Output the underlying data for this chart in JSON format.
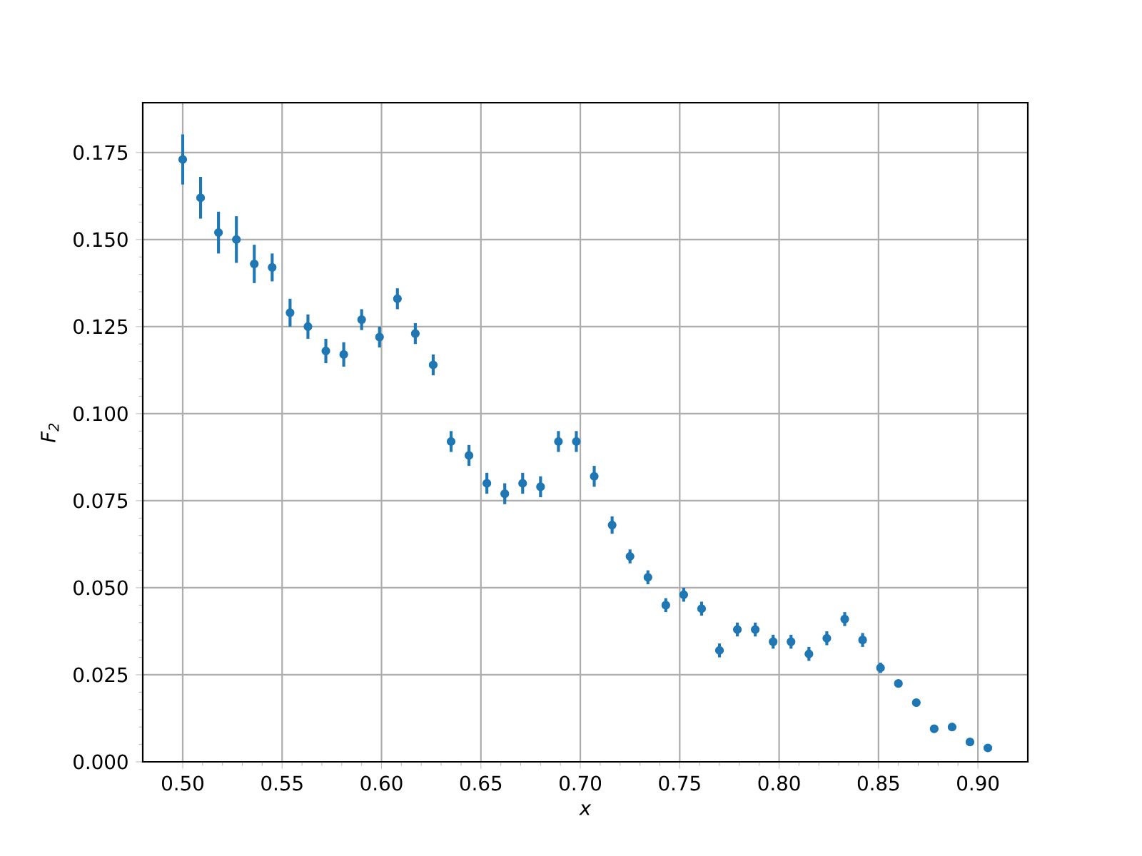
{
  "chart_data": {
    "type": "scatter",
    "xlabel": "x",
    "ylabel": "F$_{2}$",
    "x": [
      0.5,
      0.509,
      0.518,
      0.527,
      0.536,
      0.545,
      0.554,
      0.563,
      0.572,
      0.581,
      0.59,
      0.599,
      0.608,
      0.617,
      0.626,
      0.635,
      0.644,
      0.653,
      0.662,
      0.671,
      0.68,
      0.689,
      0.698,
      0.707,
      0.716,
      0.725,
      0.734,
      0.743,
      0.752,
      0.761,
      0.77,
      0.779,
      0.788,
      0.797,
      0.806,
      0.815,
      0.824,
      0.833,
      0.842,
      0.851,
      0.86,
      0.869,
      0.878,
      0.887,
      0.896,
      0.905
    ],
    "values": [
      0.173,
      0.162,
      0.152,
      0.15,
      0.143,
      0.142,
      0.129,
      0.125,
      0.118,
      0.117,
      0.127,
      0.122,
      0.133,
      0.123,
      0.114,
      0.092,
      0.088,
      0.08,
      0.077,
      0.08,
      0.079,
      0.092,
      0.092,
      0.082,
      0.068,
      0.059,
      0.053,
      0.045,
      0.048,
      0.044,
      0.032,
      0.038,
      0.038,
      0.0345,
      0.0345,
      0.031,
      0.0355,
      0.041,
      0.035,
      0.027,
      0.0225,
      0.017,
      0.0095,
      0.01,
      0.0057,
      0.004
    ],
    "errors": [
      0.0072,
      0.006,
      0.006,
      0.0067,
      0.0055,
      0.004,
      0.004,
      0.0035,
      0.0035,
      0.0035,
      0.003,
      0.003,
      0.003,
      0.003,
      0.003,
      0.003,
      0.003,
      0.003,
      0.003,
      0.003,
      0.003,
      0.003,
      0.003,
      0.003,
      0.0025,
      0.002,
      0.002,
      0.002,
      0.002,
      0.002,
      0.002,
      0.002,
      0.002,
      0.002,
      0.002,
      0.002,
      0.002,
      0.002,
      0.002,
      0.0015,
      0.001,
      0.001,
      null,
      null,
      null,
      null
    ],
    "color": "#1f77b4",
    "marker": "circle",
    "grid": true,
    "xlim": [
      0.4799,
      0.9251
    ],
    "ylim": [
      0,
      0.1893
    ],
    "xticks": [
      {
        "value": 0.5,
        "label": "0.50"
      },
      {
        "value": 0.55,
        "label": "0.55"
      },
      {
        "value": 0.6,
        "label": "0.60"
      },
      {
        "value": 0.65,
        "label": "0.65"
      },
      {
        "value": 0.7,
        "label": "0.70"
      },
      {
        "value": 0.75,
        "label": "0.75"
      },
      {
        "value": 0.8,
        "label": "0.80"
      },
      {
        "value": 0.85,
        "label": "0.85"
      },
      {
        "value": 0.9,
        "label": "0.90"
      }
    ],
    "yticks": [
      {
        "value": 0,
        "label": "0.000"
      },
      {
        "value": 0.025,
        "label": "0.025"
      },
      {
        "value": 0.05,
        "label": "0.050"
      },
      {
        "value": 0.075,
        "label": "0.075"
      },
      {
        "value": 0.1,
        "label": "0.100"
      },
      {
        "value": 0.125,
        "label": "0.125"
      },
      {
        "value": 0.15,
        "label": "0.150"
      },
      {
        "value": 0.175,
        "label": "0.175"
      }
    ]
  }
}
